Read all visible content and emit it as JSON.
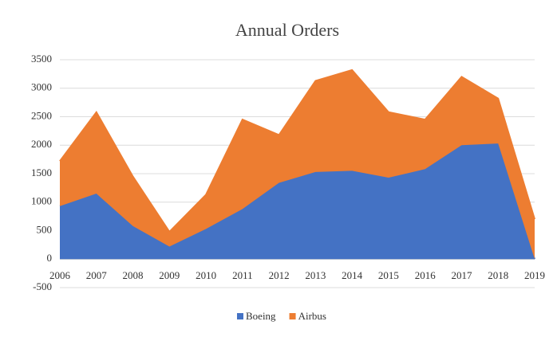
{
  "chart_data": {
    "type": "stacked_area",
    "title": "Annual Orders",
    "categories": [
      "2006",
      "2007",
      "2008",
      "2009",
      "2010",
      "2011",
      "2012",
      "2013",
      "2014",
      "2015",
      "2016",
      "2017",
      "2018",
      "2019"
    ],
    "series": [
      {
        "name": "Boeing",
        "color": "#4472c4",
        "values": [
          930,
          1150,
          580,
          220,
          530,
          880,
          1340,
          1530,
          1550,
          1430,
          1580,
          2000,
          2030,
          0
        ]
      },
      {
        "name": "Airbus",
        "color": "#ed7d31",
        "values": [
          790,
          1430,
          870,
          260,
          600,
          1570,
          840,
          1600,
          1770,
          1150,
          870,
          1200,
          790,
          700
        ]
      }
    ],
    "ylim": [
      -500,
      3500
    ],
    "yticks": [
      -500,
      0,
      500,
      1000,
      1500,
      2000,
      2500,
      3000,
      3500
    ],
    "grid": true,
    "legend": "bottom"
  }
}
